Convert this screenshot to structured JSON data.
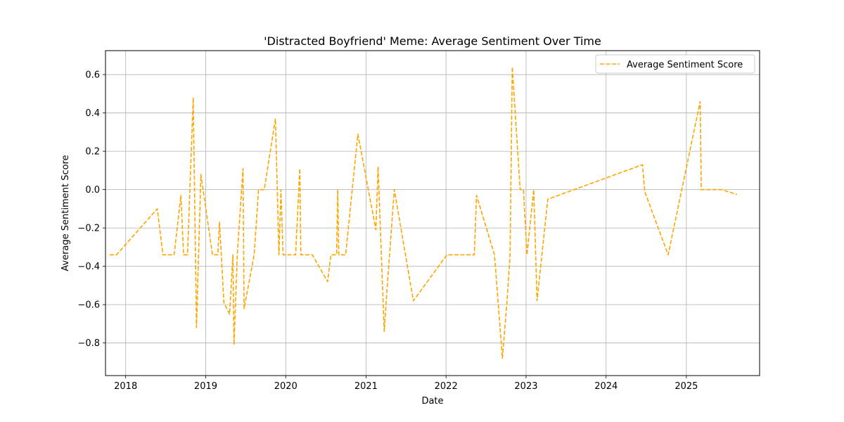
{
  "chart_data": {
    "type": "line",
    "title": "'Distracted Boyfriend' Meme: Average Sentiment Over Time",
    "xlabel": "Date",
    "ylabel": "Average Sentiment Score",
    "x_ticks": [
      "2018",
      "2019",
      "2020",
      "2021",
      "2022",
      "2023",
      "2024",
      "2025"
    ],
    "y_ticks": [
      "−0.8",
      "−0.6",
      "−0.4",
      "−0.2",
      "0.0",
      "0.2",
      "0.4",
      "0.6"
    ],
    "xlim": [
      "2017-10-01",
      "2025-12-01"
    ],
    "ylim": [
      -0.97,
      0.725
    ],
    "grid": true,
    "legend_position": "top-right",
    "series": [
      {
        "name": "Average Sentiment Score",
        "color": "#ffa500",
        "line_style": "dashed",
        "points": [
          [
            "2017-10-20",
            -0.34
          ],
          [
            "2017-11-20",
            -0.34
          ],
          [
            "2018-05-25",
            -0.1
          ],
          [
            "2018-06-20",
            -0.34
          ],
          [
            "2018-08-10",
            -0.34
          ],
          [
            "2018-09-10",
            -0.03
          ],
          [
            "2018-09-22",
            -0.34
          ],
          [
            "2018-10-10",
            -0.34
          ],
          [
            "2018-11-05",
            0.48
          ],
          [
            "2018-11-20",
            -0.72
          ],
          [
            "2018-12-10",
            0.08
          ],
          [
            "2019-02-01",
            -0.34
          ],
          [
            "2019-02-25",
            -0.34
          ],
          [
            "2019-03-05",
            -0.17
          ],
          [
            "2019-03-25",
            -0.59
          ],
          [
            "2019-04-20",
            -0.65
          ],
          [
            "2019-05-05",
            -0.34
          ],
          [
            "2019-05-10",
            -0.81
          ],
          [
            "2019-05-25",
            -0.34
          ],
          [
            "2019-06-20",
            0.11
          ],
          [
            "2019-06-25",
            -0.62
          ],
          [
            "2019-08-10",
            -0.34
          ],
          [
            "2019-08-30",
            0.0
          ],
          [
            "2019-09-25",
            0.0
          ],
          [
            "2019-11-15",
            0.37
          ],
          [
            "2019-12-01",
            -0.34
          ],
          [
            "2019-12-10",
            0.0
          ],
          [
            "2019-12-20",
            -0.34
          ],
          [
            "2020-02-15",
            -0.34
          ],
          [
            "2020-03-05",
            0.11
          ],
          [
            "2020-03-10",
            -0.34
          ],
          [
            "2020-05-01",
            -0.34
          ],
          [
            "2020-07-10",
            -0.48
          ],
          [
            "2020-07-25",
            -0.34
          ],
          [
            "2020-08-20",
            -0.34
          ],
          [
            "2020-08-25",
            0.0
          ],
          [
            "2020-08-30",
            -0.34
          ],
          [
            "2020-09-30",
            -0.34
          ],
          [
            "2020-11-25",
            0.29
          ],
          [
            "2021-02-15",
            -0.21
          ],
          [
            "2021-02-25",
            0.12
          ],
          [
            "2021-03-25",
            -0.74
          ],
          [
            "2021-04-05",
            -0.55
          ],
          [
            "2021-05-10",
            0.0
          ],
          [
            "2021-08-05",
            -0.58
          ],
          [
            "2022-01-05",
            -0.34
          ],
          [
            "2022-05-10",
            -0.34
          ],
          [
            "2022-05-20",
            -0.03
          ],
          [
            "2022-08-10",
            -0.34
          ],
          [
            "2022-09-15",
            -0.88
          ],
          [
            "2022-10-05",
            -0.6
          ],
          [
            "2022-10-20",
            -0.34
          ],
          [
            "2022-10-30",
            0.64
          ],
          [
            "2022-12-05",
            0.0
          ],
          [
            "2022-12-20",
            0.0
          ],
          [
            "2023-01-05",
            -0.34
          ],
          [
            "2023-02-05",
            0.0
          ],
          [
            "2023-02-20",
            -0.58
          ],
          [
            "2023-04-10",
            -0.05
          ],
          [
            "2024-06-15",
            0.13
          ],
          [
            "2024-06-25",
            -0.01
          ],
          [
            "2024-10-10",
            -0.34
          ],
          [
            "2025-03-05",
            0.46
          ],
          [
            "2025-03-10",
            0.0
          ],
          [
            "2025-06-10",
            0.0
          ],
          [
            "2025-08-20",
            -0.025
          ]
        ]
      }
    ]
  }
}
